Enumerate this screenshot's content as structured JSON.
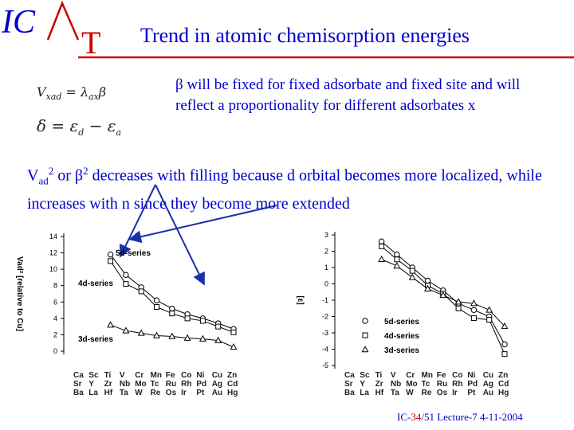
{
  "header": {
    "logo_ic": "IC",
    "logo_t": "T",
    "title": "Trend in atomic chemisorption energies"
  },
  "formulas": {
    "line1": "Vxad = λaxβ",
    "line2": "δ = εd − εa"
  },
  "beta_note": {
    "beta_symbol": "β",
    "text": " will be fixed for fixed adsorbate and fixed site and will reflect a proportionality for different adsorbates x"
  },
  "vad_note": {
    "v": "V",
    "v_sub": "ad",
    "v_sup": "2",
    "or": " or ",
    "beta": "β",
    "beta_sup": "2",
    "rest": " decreases with filling because d orbital becomes more localized, while increases with n since they become more extended"
  },
  "footer": {
    "prefix": "IC-",
    "page": "34",
    "rest": "/51 Lecture-7 4-11-2004"
  },
  "colors": {
    "blue": "#0000cc",
    "red": "#cc0000"
  },
  "chart_data": [
    {
      "type": "line",
      "ylabel": "Vad² [relative to Cu]",
      "ylim": [
        0,
        14
      ],
      "yticks": [
        "0",
        "2",
        "4",
        "6",
        "8",
        "10",
        "12",
        "14"
      ],
      "x_rows": [
        [
          "Ca",
          "Sc",
          "Ti",
          "V",
          "Cr",
          "Mn",
          "Fe",
          "Co",
          "Ni",
          "Cu",
          "Zn"
        ],
        [
          "Sr",
          "Y",
          "Zr",
          "Nb",
          "Mo",
          "Tc",
          "Ru",
          "Rh",
          "Pd",
          "Ag",
          "Cd"
        ],
        [
          "Ba",
          "La",
          "Hf",
          "Ta",
          "W",
          "Re",
          "Os",
          "Ir",
          "Pt",
          "Au",
          "Hg"
        ]
      ],
      "series": [
        {
          "name": "5d-series",
          "marker": "circle",
          "x_index": [
            2,
            3,
            4,
            5,
            6,
            7,
            8,
            9,
            10
          ],
          "values": [
            11.8,
            9.3,
            7.8,
            6.2,
            5.2,
            4.5,
            4.0,
            3.4,
            2.7
          ]
        },
        {
          "name": "4d-series",
          "marker": "square",
          "x_index": [
            2,
            3,
            4,
            5,
            6,
            7,
            8,
            9,
            10
          ],
          "values": [
            11.0,
            8.2,
            7.3,
            5.4,
            4.6,
            4.0,
            3.7,
            3.0,
            2.3
          ]
        },
        {
          "name": "3d-series",
          "marker": "triangle",
          "x_index": [
            2,
            3,
            4,
            5,
            6,
            7,
            8,
            9,
            10
          ],
          "values": [
            3.2,
            2.5,
            2.2,
            1.9,
            1.8,
            1.6,
            1.5,
            1.3,
            0.5
          ]
        }
      ]
    },
    {
      "type": "line",
      "ylabel": "[ε]",
      "ylabel_sub": "d",
      "ylim": [
        -5,
        3
      ],
      "yticks": [
        "3",
        "2",
        "1",
        "0",
        "-1",
        "-2",
        "-3",
        "-4",
        "-5"
      ],
      "x_rows": [
        [
          "Ca",
          "Sc",
          "Ti",
          "V",
          "Cr",
          "Mn",
          "Fe",
          "Co",
          "Ni",
          "Cu",
          "Zn"
        ],
        [
          "Sr",
          "Y",
          "Zr",
          "Nb",
          "Mo",
          "Tc",
          "Ru",
          "Rh",
          "Pd",
          "Ag",
          "Cd"
        ],
        [
          "Ba",
          "La",
          "Hf",
          "Ta",
          "W",
          "Re",
          "Os",
          "Ir",
          "Pt",
          "Au",
          "Hg"
        ]
      ],
      "series": [
        {
          "name": "5d-series",
          "marker": "circle",
          "x_index": [
            2,
            3,
            4,
            5,
            6,
            7,
            8,
            9,
            10
          ],
          "values": [
            2.6,
            1.8,
            1.0,
            0.2,
            -0.4,
            -1.2,
            -1.6,
            -2.0,
            -3.7
          ]
        },
        {
          "name": "4d-series",
          "marker": "square",
          "x_index": [
            2,
            3,
            4,
            5,
            6,
            7,
            8,
            9,
            10
          ],
          "values": [
            2.3,
            1.5,
            0.8,
            -0.1,
            -0.6,
            -1.5,
            -2.1,
            -2.2,
            -4.3
          ]
        },
        {
          "name": "3d-series",
          "marker": "triangle",
          "x_index": [
            2,
            3,
            4,
            5,
            6,
            7,
            8,
            9,
            10
          ],
          "values": [
            1.5,
            1.1,
            0.4,
            -0.3,
            -0.7,
            -1.1,
            -1.2,
            -1.6,
            -2.6
          ]
        }
      ]
    }
  ]
}
